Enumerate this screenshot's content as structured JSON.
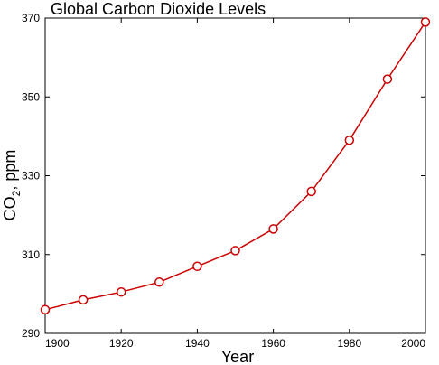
{
  "chart_data": {
    "type": "line",
    "title": "Global Carbon Dioxide Levels",
    "xlabel": "Year",
    "ylabel_main": "CO",
    "ylabel_sub": "2",
    "ylabel_suffix": ", ppm",
    "x": [
      1900,
      1910,
      1920,
      1930,
      1940,
      1950,
      1960,
      1970,
      1980,
      1990,
      2000
    ],
    "series": [
      {
        "values": [
          296,
          298.5,
          300.5,
          303,
          307,
          311,
          316.5,
          326,
          339,
          354.5,
          369
        ]
      }
    ],
    "xlim": [
      1900,
      2000
    ],
    "ylim": [
      290,
      370
    ],
    "xticks": [
      1900,
      1920,
      1940,
      1960,
      1980,
      2000
    ],
    "yticks": [
      290,
      310,
      330,
      350,
      370
    ],
    "grid": false,
    "line_color": "#cc0000",
    "marker": "open-circle"
  }
}
